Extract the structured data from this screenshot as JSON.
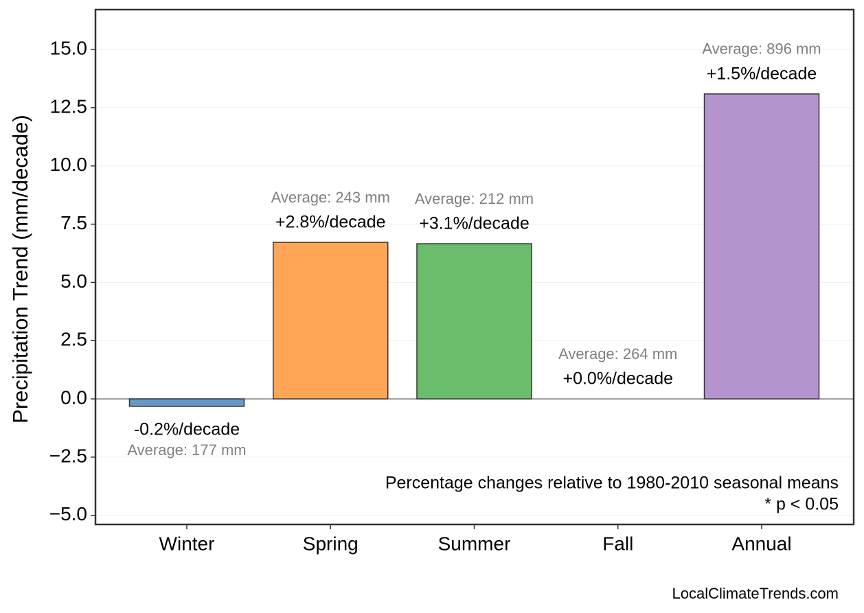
{
  "chart_data": {
    "type": "bar",
    "y_label": "Precipitation Trend (mm/decade)",
    "categories": [
      "Winter",
      "Spring",
      "Summer",
      "Fall",
      "Annual"
    ],
    "values": [
      -0.32,
      6.72,
      6.66,
      0.0,
      13.09
    ],
    "colors": [
      "#6699c7",
      "#ffa555",
      "#6abd6a",
      "#e07070",
      "#b394cf"
    ],
    "trend_labels": [
      "-0.2%/decade",
      "+2.8%/decade",
      "+3.1%/decade",
      "+0.0%/decade",
      "+1.5%/decade"
    ],
    "average_labels": [
      "Average: 177 mm",
      "Average: 243 mm",
      "Average: 212 mm",
      "Average: 264 mm",
      "Average: 896 mm"
    ],
    "ylim": [
      -5.39,
      16.71
    ],
    "yticks": [
      {
        "value": -5,
        "label": "−5.0"
      },
      {
        "value": -2.5,
        "label": "−2.5"
      },
      {
        "value": 0,
        "label": "0.0"
      },
      {
        "value": 2.5,
        "label": "2.5"
      },
      {
        "value": 5,
        "label": "5.0"
      },
      {
        "value": 7.5,
        "label": "7.5"
      },
      {
        "value": 10,
        "label": "10.0"
      },
      {
        "value": 12.5,
        "label": "12.5"
      },
      {
        "value": 15,
        "label": "15.0"
      }
    ],
    "grid": true,
    "notes": [
      "Percentage changes relative to 1980-2010 seasonal means",
      "* p < 0.05"
    ],
    "footer": "LocalClimateTrends.com"
  }
}
